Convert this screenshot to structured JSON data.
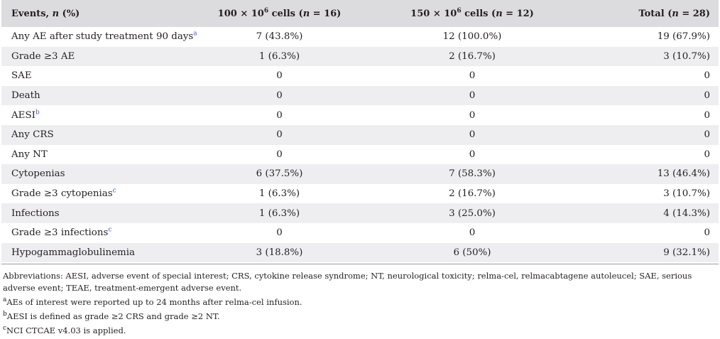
{
  "header": {
    "col1": {
      "pre": "Events, ",
      "italic": "n",
      "post": " (%)"
    },
    "col2": {
      "pre": "100 × 10",
      "sup": "6",
      "post1": " cells (",
      "italic": "n",
      "post2": " = 16)"
    },
    "col3": {
      "pre": "150 × 10",
      "sup": "6",
      "post1": " cells (",
      "italic": "n",
      "post2": " = 12)"
    },
    "col4": {
      "pre": "Total (",
      "italic": "n",
      "post": " = 28)"
    }
  },
  "rows": [
    {
      "label": "Any AE after study treatment 90 days",
      "sup": "a",
      "c1": "7 (43.8%)",
      "c2": "12 (100.0%)",
      "c3": "19 (67.9%)"
    },
    {
      "label": "Grade ≥3 AE",
      "sup": "",
      "c1": "1 (6.3%)",
      "c2": "2 (16.7%)",
      "c3": "3 (10.7%)"
    },
    {
      "label": "SAE",
      "sup": "",
      "c1": "0",
      "c2": "0",
      "c3": "0"
    },
    {
      "label": "Death",
      "sup": "",
      "c1": "0",
      "c2": "0",
      "c3": "0"
    },
    {
      "label": "AESI",
      "sup": "b",
      "c1": "0",
      "c2": "0",
      "c3": "0"
    },
    {
      "label": "Any CRS",
      "sup": "",
      "c1": "0",
      "c2": "0",
      "c3": "0"
    },
    {
      "label": "Any NT",
      "sup": "",
      "c1": "0",
      "c2": "0",
      "c3": "0"
    },
    {
      "label": "Cytopenias",
      "sup": "",
      "c1": "6 (37.5%)",
      "c2": "7 (58.3%)",
      "c3": "13 (46.4%)"
    },
    {
      "label": "Grade ≥3 cytopenias",
      "sup": "c",
      "c1": "1 (6.3%)",
      "c2": "2 (16.7%)",
      "c3": "3 (10.7%)"
    },
    {
      "label": "Infections",
      "sup": "",
      "c1": "1 (6.3%)",
      "c2": "3 (25.0%)",
      "c3": "4 (14.3%)"
    },
    {
      "label": "Grade ≥3 infections",
      "sup": "c",
      "c1": "0",
      "c2": "0",
      "c3": "0"
    },
    {
      "label": "Hypogammaglobulinemia",
      "sup": "",
      "c1": "3 (18.8%)",
      "c2": "6 (50%)",
      "c3": "9 (32.1%)"
    }
  ],
  "notes": {
    "abbreviations": "Abbreviations: AESI, adverse event of special interest; CRS, cytokine release syndrome; NT, neurological toxicity; relma-cel, relmacabtagene autoleucel; SAE, serious adverse event; TEAE, treatment-emergent adverse event.",
    "footnotes": [
      {
        "mark": "a",
        "text": "AEs of interest were reported up to 24 months after relma-cel infusion."
      },
      {
        "mark": "b",
        "text": "AESI is defined as grade ≥2 CRS and grade ≥2 NT."
      },
      {
        "mark": "c",
        "text": "NCI CTCAE v4.03 is applied."
      }
    ]
  }
}
